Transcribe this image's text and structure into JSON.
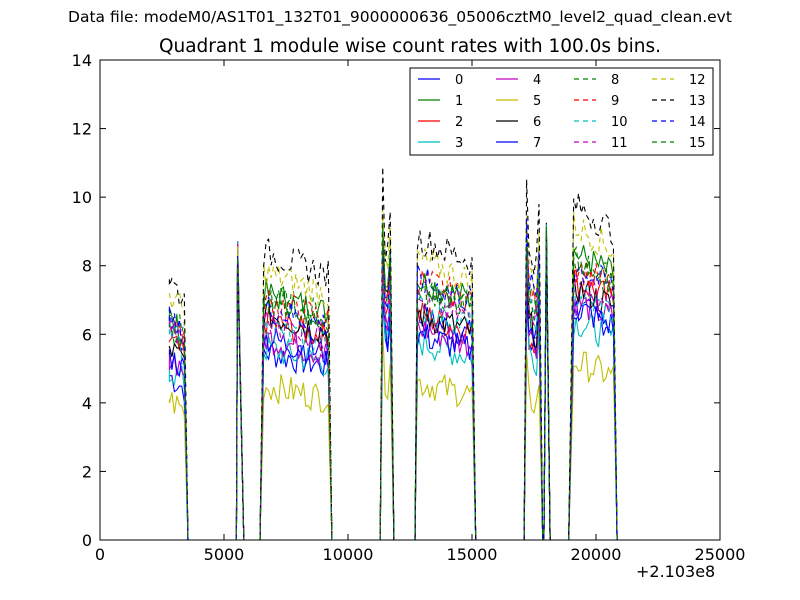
{
  "figure": {
    "suptitle": "Data file: modeM0/AS1T01_132T01_9000000636_05006cztM0_level2_quad_clean.evt"
  },
  "chart_data": {
    "type": "line",
    "title": "Quadrant 1 module wise count rates with 100.0s bins.",
    "xlabel": "",
    "ylabel": "",
    "xlim": [
      0,
      25000
    ],
    "ylim": [
      0,
      14
    ],
    "x_offset_label": "+2.103e8",
    "xticks": [
      0,
      5000,
      10000,
      15000,
      20000,
      25000
    ],
    "xtick_labels": [
      "0",
      "5000",
      "10000",
      "15000",
      "20000",
      "25000"
    ],
    "yticks": [
      0,
      2,
      4,
      6,
      8,
      10,
      12,
      14
    ],
    "ytick_labels": [
      "0",
      "2",
      "4",
      "6",
      "8",
      "10",
      "12",
      "14"
    ],
    "grid": false,
    "legend": {
      "placement": "top-right",
      "columns": 4
    },
    "segments": [
      {
        "start": 2800,
        "end": 3400,
        "spike": false,
        "zero_until": 5500
      },
      {
        "start": 5550,
        "end": 5650,
        "spike": true,
        "zero_until": 6450
      },
      {
        "start": 6600,
        "end": 9200,
        "spike": false,
        "zero_until": 11300
      },
      {
        "start": 11400,
        "end": 11700,
        "spike": false,
        "zero_until": 12700
      },
      {
        "start": 12800,
        "end": 15000,
        "spike": false,
        "zero_until": 17100
      },
      {
        "start": 17200,
        "end": 17700,
        "spike": false,
        "zero_until": 17900
      },
      {
        "start": 18000,
        "end": 18000,
        "spike": true,
        "zero_until": 18900
      },
      {
        "start": 19100,
        "end": 20700,
        "spike": false,
        "zero_until": 20800
      }
    ],
    "series": [
      {
        "name": "0",
        "color": "#0000ff",
        "dash": "solid",
        "levels": [
          4.8,
          8.5,
          5.5,
          6.0,
          6.5,
          5.8,
          9.0,
          6.8
        ]
      },
      {
        "name": "1",
        "color": "#008000",
        "dash": "solid",
        "levels": [
          6.4,
          8.5,
          7.2,
          7.8,
          7.6,
          6.6,
          9.0,
          8.4
        ]
      },
      {
        "name": "2",
        "color": "#ff0000",
        "dash": "solid",
        "levels": [
          5.8,
          8.5,
          6.4,
          7.0,
          6.6,
          6.0,
          9.0,
          7.6
        ]
      },
      {
        "name": "3",
        "color": "#00bfbf",
        "dash": "solid",
        "levels": [
          5.0,
          8.5,
          5.6,
          5.8,
          5.8,
          5.6,
          9.0,
          6.4
        ]
      },
      {
        "name": "4",
        "color": "#bf00bf",
        "dash": "solid",
        "levels": [
          5.4,
          8.5,
          5.9,
          6.4,
          6.2,
          6.1,
          9.0,
          7.0
        ]
      },
      {
        "name": "5",
        "color": "#bfbf00",
        "dash": "solid",
        "levels": [
          4.1,
          8.5,
          4.5,
          4.8,
          4.6,
          4.2,
          9.0,
          5.2
        ]
      },
      {
        "name": "6",
        "color": "#000000",
        "dash": "solid",
        "levels": [
          5.6,
          8.5,
          6.6,
          7.2,
          6.6,
          6.4,
          9.0,
          7.4
        ]
      },
      {
        "name": "7",
        "color": "#0000ff",
        "dash": "solid",
        "levels": [
          5.4,
          8.5,
          5.9,
          6.2,
          6.0,
          6.3,
          9.0,
          6.8
        ]
      },
      {
        "name": "8",
        "color": "#008000",
        "dash": "dashed",
        "levels": [
          6.6,
          8.5,
          7.1,
          7.6,
          7.4,
          7.4,
          9.0,
          8.2
        ]
      },
      {
        "name": "9",
        "color": "#ff0000",
        "dash": "dashed",
        "levels": [
          6.5,
          8.5,
          7.0,
          7.4,
          7.6,
          7.4,
          9.0,
          8.0
        ]
      },
      {
        "name": "10",
        "color": "#00bfbf",
        "dash": "dashed",
        "levels": [
          6.0,
          8.5,
          6.2,
          6.6,
          6.8,
          6.8,
          9.0,
          7.2
        ]
      },
      {
        "name": "11",
        "color": "#bf00bf",
        "dash": "dashed",
        "levels": [
          6.2,
          8.5,
          6.4,
          6.8,
          7.0,
          7.0,
          9.0,
          7.5
        ]
      },
      {
        "name": "12",
        "color": "#bfbf00",
        "dash": "dashed",
        "levels": [
          7.2,
          8.5,
          7.8,
          8.2,
          8.2,
          8.0,
          9.0,
          9.2
        ]
      },
      {
        "name": "13",
        "color": "#000000",
        "dash": "dashed",
        "levels": [
          7.6,
          8.5,
          8.4,
          8.8,
          8.8,
          8.6,
          9.0,
          9.8
        ]
      },
      {
        "name": "14",
        "color": "#0000ff",
        "dash": "dashed",
        "levels": [
          6.4,
          8.5,
          6.8,
          7.2,
          7.6,
          7.6,
          9.0,
          8.0
        ]
      },
      {
        "name": "15",
        "color": "#008000",
        "dash": "dashed",
        "levels": [
          6.2,
          8.5,
          7.0,
          7.4,
          7.4,
          7.2,
          9.0,
          8.2
        ]
      }
    ]
  }
}
